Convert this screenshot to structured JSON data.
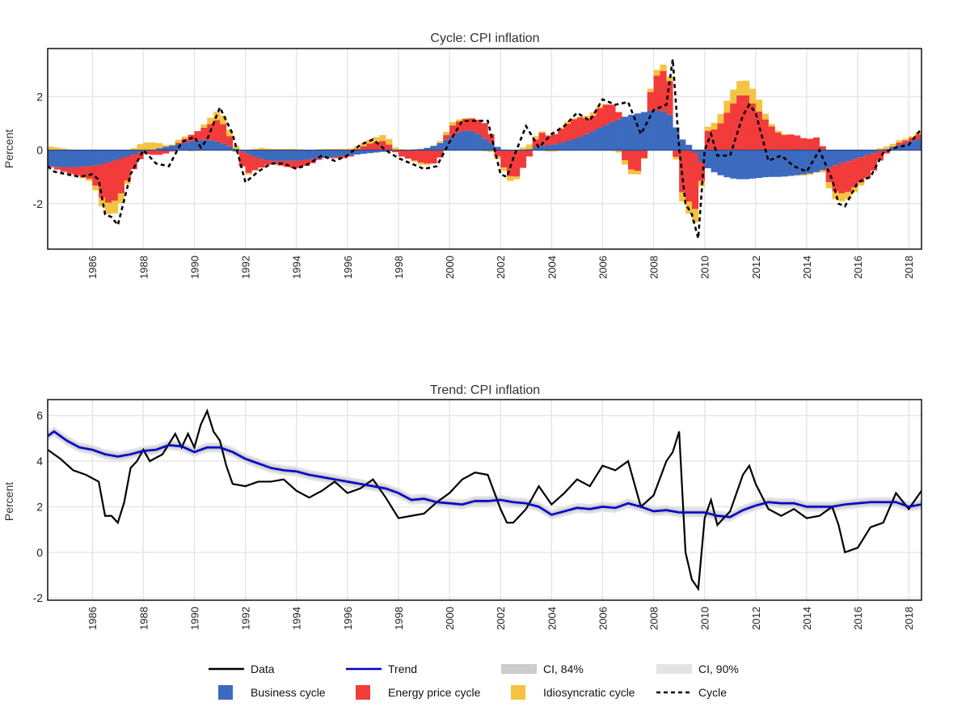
{
  "chart_data": [
    {
      "type": "bar",
      "title": "Cycle: CPI inflation",
      "ylabel": "Percent",
      "xlim": [
        1984.25,
        2018.5
      ],
      "ylim": [
        -3.7,
        3.8
      ],
      "yticks": [
        -2,
        0,
        2
      ],
      "xticks": [
        1986,
        1988,
        1990,
        1992,
        1994,
        1996,
        1998,
        2000,
        2002,
        2004,
        2006,
        2008,
        2010,
        2012,
        2014,
        2016,
        2018
      ],
      "grid": true,
      "stacked": true,
      "x": [
        1984.25,
        1985.0,
        1986.0,
        1986.5,
        1987.0,
        1987.5,
        1988.0,
        1988.5,
        1989.0,
        1989.5,
        1990.0,
        1990.5,
        1991.0,
        1991.5,
        1992.0,
        1992.5,
        1993.0,
        1994.0,
        1994.5,
        1995.0,
        1996.0,
        1997.0,
        1997.5,
        1998.0,
        1999.0,
        1999.5,
        2000.0,
        2000.5,
        2001.0,
        2001.5,
        2002.0,
        2002.5,
        2003.0,
        2003.5,
        2004.0,
        2004.5,
        2005.0,
        2005.5,
        2006.0,
        2006.5,
        2007.0,
        2007.5,
        2008.0,
        2008.5,
        2008.75,
        2009.0,
        2009.5,
        2009.75,
        2010.0,
        2010.5,
        2011.0,
        2011.5,
        2012.0,
        2012.5,
        2013.0,
        2013.5,
        2014.0,
        2014.5,
        2015.0,
        2015.5,
        2016.0,
        2016.5,
        2017.0,
        2017.5,
        2018.0,
        2018.5
      ],
      "series": [
        {
          "name": "Business cycle",
          "color": "#3c6abf",
          "values": [
            -0.6,
            -0.65,
            -0.6,
            -0.5,
            -0.35,
            -0.2,
            -0.05,
            0.05,
            0.15,
            0.25,
            0.35,
            0.4,
            0.3,
            0.1,
            -0.1,
            -0.3,
            -0.4,
            -0.4,
            -0.35,
            -0.3,
            -0.2,
            -0.1,
            -0.05,
            0.0,
            0.05,
            0.2,
            0.45,
            0.75,
            0.7,
            0.35,
            0.05,
            -0.05,
            0.0,
            0.15,
            0.2,
            0.3,
            0.45,
            0.65,
            0.9,
            1.1,
            1.3,
            1.4,
            1.5,
            1.45,
            1.2,
            0.5,
            0.1,
            -0.3,
            -0.6,
            -0.9,
            -1.05,
            -1.1,
            -1.05,
            -1.0,
            -1.0,
            -0.95,
            -0.9,
            -0.8,
            -0.6,
            -0.45,
            -0.3,
            -0.15,
            0.0,
            0.15,
            0.3,
            0.45
          ]
        },
        {
          "name": "Energy price cycle",
          "color": "#f23b3b",
          "values": [
            0.0,
            -0.2,
            -0.5,
            -1.5,
            -1.5,
            -0.7,
            -0.1,
            -0.2,
            -0.1,
            0.1,
            0.3,
            0.5,
            0.9,
            0.2,
            -0.8,
            -0.4,
            -0.1,
            -0.3,
            -0.2,
            0.0,
            -0.1,
            0.3,
            0.35,
            -0.2,
            -0.5,
            -0.5,
            0.4,
            0.4,
            0.5,
            0.6,
            -0.5,
            -1.1,
            -0.5,
            0.55,
            0.3,
            0.6,
            0.8,
            0.5,
            0.8,
            0.6,
            -0.7,
            -0.8,
            1.2,
            1.6,
            0.9,
            -1.4,
            -2.1,
            -2.1,
            0.7,
            0.8,
            1.6,
            2.2,
            1.6,
            1.0,
            0.55,
            0.6,
            0.4,
            0.5,
            -0.9,
            -1.2,
            -1.0,
            -0.8,
            -0.2,
            0.1,
            0.1,
            0.2
          ]
        },
        {
          "name": "Idiosyncratic cycle",
          "color": "#f5c342",
          "values": [
            0.15,
            0.05,
            -0.1,
            -0.4,
            -0.5,
            0.0,
            0.3,
            0.25,
            0.0,
            0.15,
            -0.1,
            0.2,
            0.35,
            0.2,
            -0.1,
            0.1,
            0.05,
            0.05,
            0.0,
            0.05,
            0.05,
            0.15,
            0.25,
            0.05,
            -0.1,
            0.05,
            0.15,
            0.05,
            0.0,
            -0.05,
            -0.1,
            -0.2,
            0.2,
            0.1,
            -0.1,
            0.1,
            0.0,
            0.15,
            0.05,
            -0.05,
            -0.2,
            -0.1,
            0.2,
            0.25,
            0.1,
            -0.3,
            -0.5,
            -0.5,
            0.1,
            0.3,
            0.5,
            0.55,
            0.55,
            0.1,
            0.05,
            0.0,
            -0.05,
            0.0,
            -0.3,
            -0.3,
            -0.15,
            0.0,
            0.1,
            0.1,
            0.05,
            0.1
          ]
        }
      ],
      "lines": [
        {
          "name": "Cycle",
          "color": "#000000",
          "dash": "dashed",
          "x": [
            1984.25,
            1984.5,
            1985.0,
            1985.5,
            1986.0,
            1986.25,
            1986.5,
            1986.75,
            1987.0,
            1987.5,
            1988.0,
            1988.5,
            1989.0,
            1989.5,
            1990.0,
            1990.25,
            1990.5,
            1991.0,
            1991.5,
            1992.0,
            1992.5,
            1993.0,
            1993.5,
            1994.0,
            1994.5,
            1995.0,
            1995.5,
            1996.0,
            1996.5,
            1997.0,
            1997.5,
            1998.0,
            1998.5,
            1999.0,
            1999.5,
            2000.0,
            2000.5,
            2001.0,
            2001.5,
            2002.0,
            2002.25,
            2002.5,
            2003.0,
            2003.25,
            2003.5,
            2004.0,
            2004.5,
            2005.0,
            2005.5,
            2006.0,
            2006.5,
            2007.0,
            2007.5,
            2008.0,
            2008.5,
            2008.75,
            2009.0,
            2009.25,
            2009.5,
            2009.75,
            2010.0,
            2010.25,
            2010.5,
            2011.0,
            2011.5,
            2011.75,
            2012.0,
            2012.5,
            2013.0,
            2013.5,
            2014.0,
            2014.5,
            2015.0,
            2015.25,
            2015.5,
            2016.0,
            2016.5,
            2017.0,
            2017.5,
            2018.0,
            2018.5
          ],
          "values": [
            -0.6,
            -0.8,
            -0.9,
            -1.0,
            -0.9,
            -1.1,
            -2.4,
            -2.5,
            -2.8,
            -0.9,
            0.0,
            -0.5,
            -0.6,
            0.3,
            0.5,
            0.1,
            0.4,
            1.6,
            0.6,
            -1.2,
            -0.8,
            -0.5,
            -0.5,
            -0.7,
            -0.5,
            -0.2,
            -0.4,
            -0.2,
            0.2,
            0.4,
            0.0,
            -0.3,
            -0.5,
            -0.7,
            -0.6,
            0.3,
            1.1,
            1.1,
            1.1,
            -0.9,
            -1.0,
            -0.3,
            0.9,
            0.5,
            0.1,
            0.6,
            0.9,
            1.4,
            1.1,
            1.9,
            1.7,
            1.8,
            0.6,
            1.5,
            1.7,
            3.4,
            0.1,
            -2.0,
            -2.4,
            -3.3,
            0.0,
            0.6,
            -0.2,
            -0.2,
            1.3,
            1.7,
            1.4,
            -0.4,
            -0.2,
            -0.6,
            -0.8,
            0.0,
            -1.1,
            -2.0,
            -2.1,
            -1.2,
            -1.0,
            -0.1,
            0.1,
            0.2,
            0.8
          ]
        }
      ]
    },
    {
      "type": "line",
      "title": "Trend: CPI inflation",
      "ylabel": "Percent",
      "xlim": [
        1984.25,
        2018.5
      ],
      "ylim": [
        -2.1,
        6.7
      ],
      "yticks": [
        -2,
        0,
        2,
        4,
        6
      ],
      "xticks": [
        1986,
        1988,
        1990,
        1992,
        1994,
        1996,
        1998,
        2000,
        2002,
        2004,
        2006,
        2008,
        2010,
        2012,
        2014,
        2016,
        2018
      ],
      "grid": true,
      "series": [
        {
          "name": "Data",
          "color": "#000000",
          "x": [
            1984.25,
            1984.75,
            1985.25,
            1985.75,
            1986.25,
            1986.5,
            1986.75,
            1987.0,
            1987.25,
            1987.5,
            1987.75,
            1988.0,
            1988.25,
            1988.75,
            1989.25,
            1989.5,
            1989.75,
            1990.0,
            1990.25,
            1990.5,
            1990.75,
            1991.0,
            1991.25,
            1991.5,
            1992.0,
            1992.5,
            1993.0,
            1993.5,
            1994.0,
            1994.5,
            1995.0,
            1995.5,
            1996.0,
            1996.5,
            1997.0,
            1997.5,
            1998.0,
            1998.5,
            1999.0,
            1999.5,
            2000.0,
            2000.5,
            2001.0,
            2001.5,
            2002.0,
            2002.25,
            2002.5,
            2003.0,
            2003.5,
            2004.0,
            2004.5,
            2005.0,
            2005.5,
            2006.0,
            2006.5,
            2007.0,
            2007.5,
            2008.0,
            2008.5,
            2008.75,
            2009.0,
            2009.25,
            2009.5,
            2009.75,
            2010.0,
            2010.25,
            2010.5,
            2011.0,
            2011.5,
            2011.75,
            2012.0,
            2012.5,
            2013.0,
            2013.5,
            2014.0,
            2014.5,
            2015.0,
            2015.25,
            2015.5,
            2016.0,
            2016.5,
            2017.0,
            2017.5,
            2018.0,
            2018.5
          ],
          "values": [
            4.5,
            4.1,
            3.6,
            3.4,
            3.1,
            1.6,
            1.6,
            1.3,
            2.2,
            3.7,
            4.0,
            4.5,
            4.0,
            4.3,
            5.2,
            4.6,
            5.2,
            4.6,
            5.6,
            6.2,
            5.3,
            4.9,
            3.8,
            3.0,
            2.9,
            3.1,
            3.1,
            3.2,
            2.7,
            2.4,
            2.7,
            3.1,
            2.6,
            2.8,
            3.2,
            2.4,
            1.5,
            1.6,
            1.7,
            2.2,
            2.6,
            3.2,
            3.5,
            3.4,
            1.9,
            1.3,
            1.3,
            1.9,
            2.9,
            2.1,
            2.6,
            3.2,
            2.9,
            3.8,
            3.6,
            4.0,
            2.0,
            2.5,
            4.0,
            4.4,
            5.3,
            0.0,
            -1.2,
            -1.6,
            1.5,
            2.3,
            1.2,
            1.8,
            3.4,
            3.8,
            3.0,
            1.9,
            1.6,
            1.9,
            1.5,
            1.6,
            2.0,
            1.2,
            0.0,
            0.2,
            1.1,
            1.3,
            2.6,
            1.9,
            2.7
          ]
        },
        {
          "name": "Trend",
          "color": "#0000cc",
          "x": [
            1984.25,
            1984.5,
            1985.0,
            1985.5,
            1986.0,
            1986.5,
            1987.0,
            1987.5,
            1988.0,
            1988.5,
            1989.0,
            1989.5,
            1990.0,
            1990.5,
            1991.0,
            1991.5,
            1992.0,
            1992.5,
            1993.0,
            1993.5,
            1994.0,
            1994.5,
            1995.0,
            1995.5,
            1996.0,
            1996.5,
            1997.0,
            1997.5,
            1998.0,
            1998.5,
            1999.0,
            1999.5,
            2000.0,
            2000.5,
            2001.0,
            2001.5,
            2002.0,
            2002.5,
            2003.0,
            2003.5,
            2004.0,
            2004.5,
            2005.0,
            2005.5,
            2006.0,
            2006.5,
            2007.0,
            2007.5,
            2008.0,
            2008.5,
            2009.0,
            2009.5,
            2010.0,
            2010.5,
            2011.0,
            2011.5,
            2012.0,
            2012.5,
            2013.0,
            2013.5,
            2014.0,
            2014.5,
            2015.0,
            2015.5,
            2016.0,
            2016.5,
            2017.0,
            2017.5,
            2018.0,
            2018.5
          ],
          "values": [
            5.1,
            5.3,
            4.9,
            4.6,
            4.5,
            4.3,
            4.2,
            4.3,
            4.45,
            4.5,
            4.7,
            4.65,
            4.4,
            4.6,
            4.6,
            4.4,
            4.1,
            3.9,
            3.7,
            3.6,
            3.55,
            3.4,
            3.3,
            3.2,
            3.1,
            3.0,
            2.9,
            2.8,
            2.6,
            2.3,
            2.35,
            2.2,
            2.15,
            2.1,
            2.25,
            2.25,
            2.3,
            2.2,
            2.15,
            2.0,
            1.65,
            1.8,
            1.95,
            1.9,
            2.0,
            1.95,
            2.15,
            2.0,
            1.8,
            1.85,
            1.75,
            1.75,
            1.75,
            1.6,
            1.55,
            1.85,
            2.05,
            2.2,
            2.15,
            2.15,
            2.0,
            2.0,
            2.0,
            2.1,
            2.15,
            2.2,
            2.2,
            2.2,
            2.0,
            2.1
          ]
        }
      ],
      "bands": [
        {
          "name": "CI, 84%",
          "color": "#cccccc",
          "halfwidth": 0.12
        },
        {
          "name": "CI, 90%",
          "color": "#e3e3e3",
          "halfwidth": 0.22
        }
      ]
    }
  ],
  "legend": {
    "placement": "bottom",
    "items": [
      {
        "label": "Data",
        "kind": "line",
        "color": "#000000"
      },
      {
        "label": "Trend",
        "kind": "line",
        "color": "#0000cc"
      },
      {
        "label": "CI, 84%",
        "kind": "band",
        "color": "#cccccc"
      },
      {
        "label": "CI, 90%",
        "kind": "band",
        "color": "#e3e3e3"
      },
      {
        "label": "Business cycle",
        "kind": "box",
        "color": "#3c6abf"
      },
      {
        "label": "Energy price cycle",
        "kind": "box",
        "color": "#f23b3b"
      },
      {
        "label": "Idiosyncratic cycle",
        "kind": "box",
        "color": "#f5c342"
      },
      {
        "label": "Cycle",
        "kind": "dashed",
        "color": "#000000"
      }
    ]
  }
}
